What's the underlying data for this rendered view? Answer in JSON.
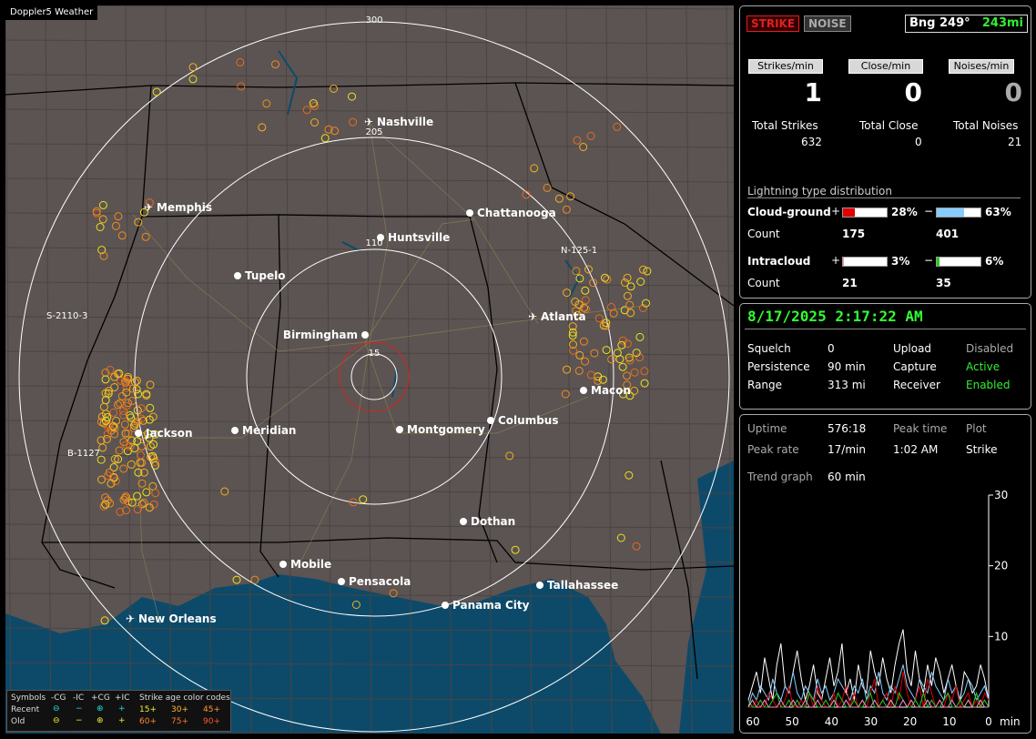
{
  "app": {
    "badge": "Doppler5 Weather"
  },
  "colors": {
    "strike_tab": "#e02020",
    "range_ring": "#ffffff",
    "close_ring": "#e02020",
    "land": "#5b5452",
    "water": "#0d4a6a",
    "cg_plus": "#e00000",
    "cg_minus": "#88ccff",
    "ic_plus": "#ff88cc",
    "ic_minus": "#22cc22"
  },
  "map": {
    "ring_labels": [
      "300",
      "205",
      "110",
      "15"
    ],
    "cities": [
      {
        "name": "Nashville",
        "airport": true
      },
      {
        "name": "Memphis",
        "airport": true
      },
      {
        "name": "Chattanooga",
        "airport": false
      },
      {
        "name": "Huntsville",
        "airport": false
      },
      {
        "name": "Tupelo",
        "airport": false
      },
      {
        "name": "Atlanta",
        "airport": true
      },
      {
        "name": "Birmingham",
        "airport": false
      },
      {
        "name": "Macon",
        "airport": false
      },
      {
        "name": "Jackson",
        "airport": false
      },
      {
        "name": "Meridian",
        "airport": false
      },
      {
        "name": "Montgomery",
        "airport": false
      },
      {
        "name": "Columbus",
        "airport": false
      },
      {
        "name": "Dothan",
        "airport": false
      },
      {
        "name": "Mobile",
        "airport": false
      },
      {
        "name": "Pensacola",
        "airport": false
      },
      {
        "name": "Tallahassee",
        "airport": false
      },
      {
        "name": "Panama City",
        "airport": false
      },
      {
        "name": "New Orleans",
        "airport": true
      }
    ],
    "cell_labels": [
      "N-125-1",
      "S-2110-3",
      "B-1127"
    ]
  },
  "legend": {
    "symbols_label": "Symbols",
    "cols": [
      "-CG",
      "-IC",
      "+CG",
      "+IC"
    ],
    "recent": "Recent",
    "old": "Old",
    "age_title": "Strike age color codes",
    "ages_recent": [
      "15+",
      "30+",
      "45+"
    ],
    "ages_old": [
      "60+",
      "75+",
      "90+"
    ]
  },
  "status": {
    "strike_tab": "STRIKE",
    "noise_tab": "NOISE",
    "bearing_label": "Bng 249°",
    "bearing_dist": "243mi",
    "rates": [
      {
        "label": "Strikes/min",
        "value": "1",
        "total_label": "Total Strikes",
        "total": "632"
      },
      {
        "label": "Close/min",
        "value": "0",
        "total_label": "Total Close",
        "total": "0"
      },
      {
        "label": "Noises/min",
        "value": "0",
        "total_label": "Total Noises",
        "total": "21"
      }
    ],
    "dist_title": "Lightning type distribution",
    "cg_label": "Cloud-ground",
    "ic_label": "Intracloud",
    "count_label": "Count",
    "plus": "+",
    "minus": "−",
    "cg_plus_pct": 28,
    "cg_plus_pct_text": "28%",
    "cg_minus_pct": 63,
    "cg_minus_pct_text": "63%",
    "cg_plus_count": "175",
    "cg_minus_count": "401",
    "ic_plus_pct": 3,
    "ic_plus_pct_text": "3%",
    "ic_minus_pct": 6,
    "ic_minus_pct_text": "6%",
    "ic_plus_count": "21",
    "ic_minus_count": "35"
  },
  "settings": {
    "datetime": "8/17/2025 2:17:22 AM",
    "squelch_label": "Squelch",
    "squelch": "0",
    "persistence_label": "Persistence",
    "persistence": "90 min",
    "range_label": "Range",
    "range": "313 mi",
    "upload_label": "Upload",
    "upload": "Disabled",
    "capture_label": "Capture",
    "capture": "Active",
    "receiver_label": "Receiver",
    "receiver": "Enabled"
  },
  "stats": {
    "uptime_label": "Uptime",
    "uptime": "576:18",
    "peak_time_label": "Peak time",
    "peak_time": "1:02 AM",
    "plot_label": "Plot",
    "plot": "Strike",
    "peak_rate_label": "Peak rate",
    "peak_rate": "17/min",
    "trend_label": "Trend graph",
    "trend": "60 min"
  },
  "chart_data": {
    "type": "line",
    "x_ticks": [
      "60",
      "50",
      "40",
      "30",
      "20",
      "10",
      "0"
    ],
    "x_unit": "min",
    "y_ticks": [
      "30",
      "20",
      "10"
    ],
    "xlim": [
      60,
      0
    ],
    "ylim": [
      0,
      30
    ],
    "series": [
      {
        "color": "#ffffff",
        "values": [
          1,
          3,
          5,
          2,
          7,
          4,
          1,
          6,
          9,
          3,
          2,
          5,
          8,
          4,
          1,
          3,
          6,
          2,
          1,
          4,
          7,
          3,
          5,
          9,
          2,
          4,
          1,
          6,
          3,
          2,
          8,
          5,
          3,
          7,
          4,
          2,
          6,
          9,
          11,
          5,
          3,
          8,
          4,
          2,
          6,
          3,
          7,
          5,
          2,
          4,
          6,
          3,
          1,
          5,
          4,
          2,
          3,
          6,
          4,
          1
        ]
      },
      {
        "color": "#88ccff",
        "values": [
          0,
          2,
          1,
          3,
          2,
          1,
          4,
          2,
          1,
          3,
          2,
          5,
          2,
          1,
          3,
          2,
          1,
          4,
          2,
          3,
          1,
          2,
          4,
          3,
          2,
          1,
          3,
          2,
          4,
          1,
          3,
          2,
          5,
          2,
          1,
          3,
          2,
          4,
          6,
          3,
          2,
          1,
          4,
          3,
          2,
          5,
          3,
          2,
          1,
          4,
          2,
          3,
          1,
          2,
          4,
          3,
          1,
          2,
          3,
          1
        ]
      },
      {
        "color": "#e00000",
        "values": [
          0,
          0,
          1,
          0,
          0,
          2,
          1,
          0,
          0,
          1,
          3,
          0,
          0,
          1,
          0,
          2,
          0,
          3,
          1,
          0,
          0,
          2,
          0,
          1,
          3,
          0,
          2,
          0,
          1,
          0,
          2,
          4,
          0,
          1,
          2,
          0,
          3,
          1,
          5,
          2,
          0,
          1,
          3,
          0,
          4,
          2,
          0,
          1,
          0,
          2,
          1,
          3,
          0,
          1,
          2,
          0,
          1,
          0,
          2,
          1
        ]
      },
      {
        "color": "#22cc22",
        "values": [
          1,
          0,
          0,
          1,
          0,
          0,
          1,
          2,
          0,
          0,
          1,
          0,
          1,
          0,
          0,
          2,
          1,
          0,
          0,
          1,
          0,
          0,
          2,
          1,
          0,
          0,
          1,
          0,
          0,
          1,
          2,
          0,
          0,
          1,
          0,
          1,
          0,
          2,
          1,
          0,
          0,
          1,
          0,
          2,
          0,
          1,
          0,
          0,
          1,
          2,
          0,
          0,
          1,
          0,
          1,
          0,
          2,
          0,
          1,
          0
        ]
      },
      {
        "color": "#ff88cc",
        "values": [
          0,
          1,
          0,
          0,
          1,
          0,
          0,
          0,
          1,
          0,
          0,
          1,
          0,
          0,
          1,
          0,
          0,
          1,
          0,
          0,
          0,
          1,
          0,
          0,
          1,
          0,
          0,
          0,
          1,
          0,
          0,
          1,
          0,
          0,
          0,
          1,
          0,
          0,
          1,
          0,
          1,
          0,
          0,
          0,
          1,
          0,
          0,
          1,
          0,
          0,
          1,
          0,
          0,
          0,
          1,
          0,
          0,
          1,
          0,
          0
        ]
      }
    ]
  }
}
